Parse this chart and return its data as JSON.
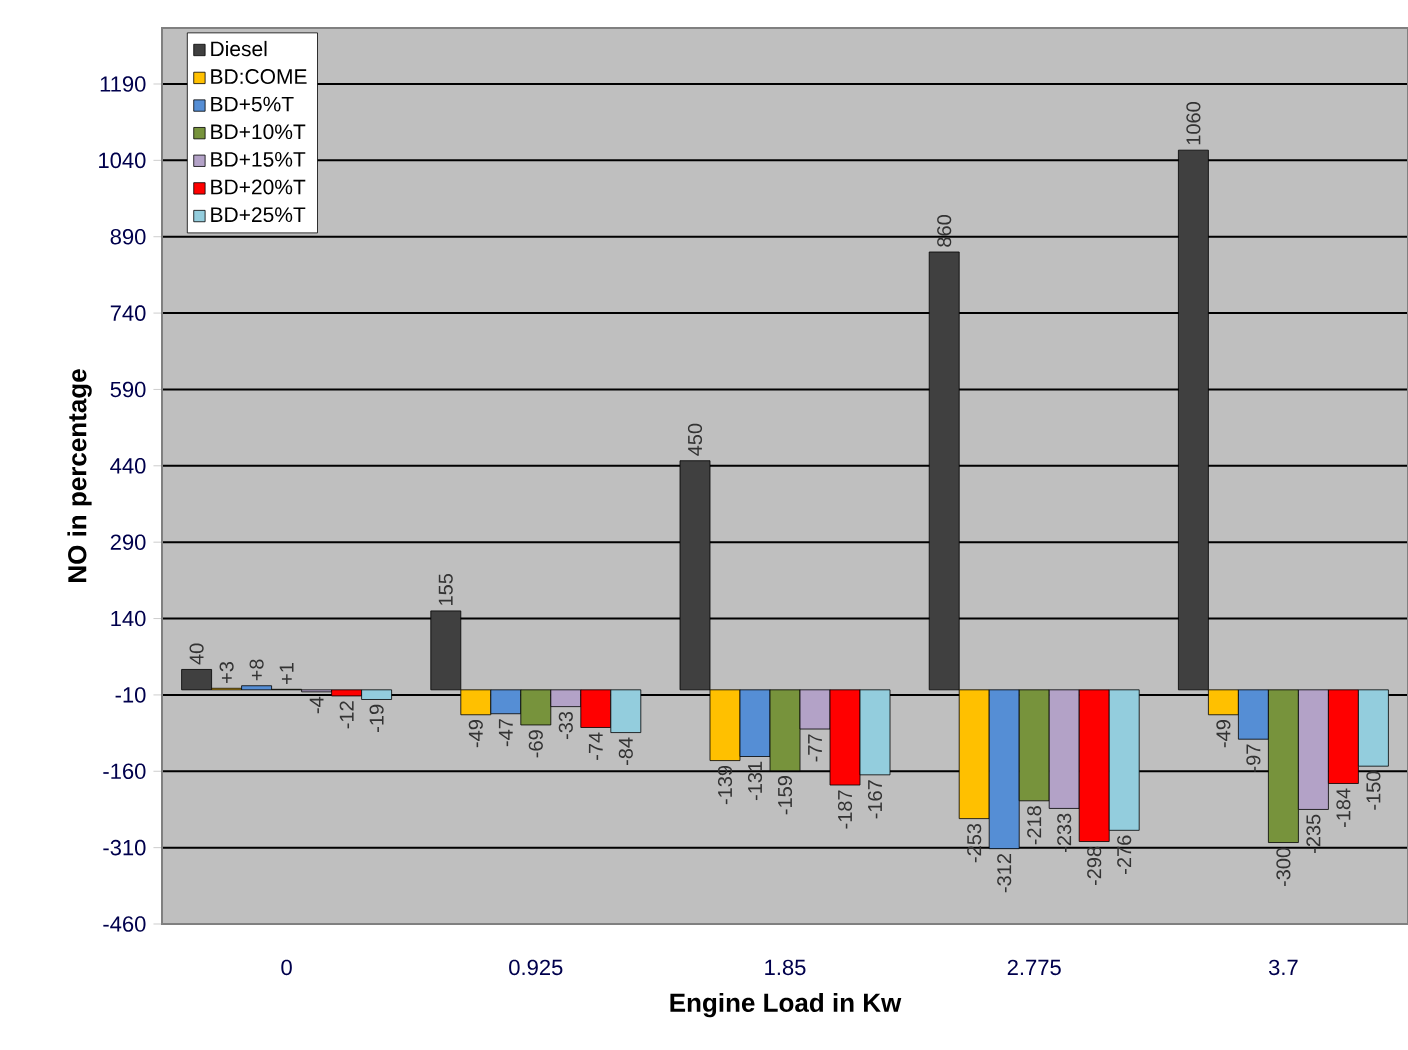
{
  "chart_data": {
    "type": "bar",
    "xlabel": "Engine Load in Kw",
    "ylabel": "NO in percentage",
    "categories": [
      "0",
      "0.925",
      "1.85",
      "2.775",
      "3.7"
    ],
    "series": [
      {
        "name": "Diesel",
        "color": "#404040",
        "values": [
          40,
          155,
          450,
          860,
          1060
        ],
        "value_labels": [
          "40",
          "155",
          "450",
          "860",
          "1060"
        ]
      },
      {
        "name": "BD:COME",
        "color": "#ffc000",
        "values": [
          3,
          -49,
          -139,
          -253,
          -49
        ],
        "value_labels": [
          "+3",
          "-49",
          "-139",
          "-253",
          "-49"
        ]
      },
      {
        "name": "BD+5%T",
        "color": "#558ed5",
        "values": [
          8,
          -47,
          -131,
          -312,
          -97
        ],
        "value_labels": [
          "+8",
          "-47",
          "-131",
          "-312",
          "-97"
        ]
      },
      {
        "name": "BD+10%T",
        "color": "#77933c",
        "values": [
          1,
          -69,
          -159,
          -218,
          -300
        ],
        "value_labels": [
          "+1",
          "-69",
          "-159",
          "-218",
          "-300"
        ]
      },
      {
        "name": "BD+15%T",
        "color": "#b3a2c7",
        "values": [
          -4,
          -33,
          -77,
          -233,
          -235
        ],
        "value_labels": [
          "-4",
          "-33",
          "-77",
          "-233",
          "-235"
        ]
      },
      {
        "name": "BD+20%T",
        "color": "#ff0000",
        "values": [
          -12,
          -74,
          -187,
          -298,
          -184
        ],
        "value_labels": [
          "-12",
          "-74",
          "-187",
          "-298",
          "-184"
        ]
      },
      {
        "name": "BD+25%T",
        "color": "#93cddd",
        "values": [
          -19,
          -84,
          -167,
          -276,
          -150
        ],
        "value_labels": [
          "-19",
          "-84",
          "-167",
          "-276",
          "-150"
        ]
      }
    ],
    "ylim": [
      -460,
      1300
    ],
    "yticks": [
      -460,
      -310,
      -160,
      -10,
      140,
      290,
      440,
      590,
      740,
      890,
      1040,
      1190
    ],
    "grid": "y",
    "legend": "top left"
  }
}
